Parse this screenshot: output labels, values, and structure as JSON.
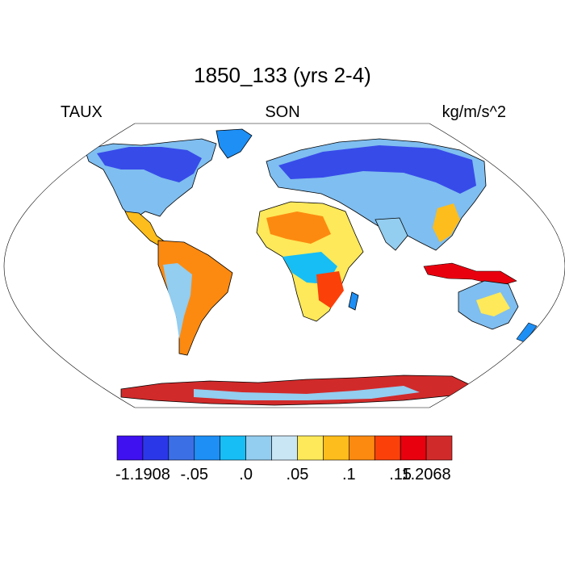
{
  "title": "1850_133 (yrs 2-4)",
  "left_label": "TAUX",
  "center_label": "SON",
  "right_label": "kg/m/s^2",
  "colorbar": {
    "colors": [
      "#3f10f0",
      "#2a37e8",
      "#3b6fe6",
      "#1e8ff5",
      "#17bdf5",
      "#93cdef",
      "#c9e6f5",
      "#fde95a",
      "#fdbd1c",
      "#fd8a10",
      "#fb400a",
      "#e8000e",
      "#d12a2a"
    ],
    "labels": [
      "-1.1908",
      "-.05",
      ".0",
      ".05",
      ".1",
      ".15",
      "1.2068"
    ]
  }
}
